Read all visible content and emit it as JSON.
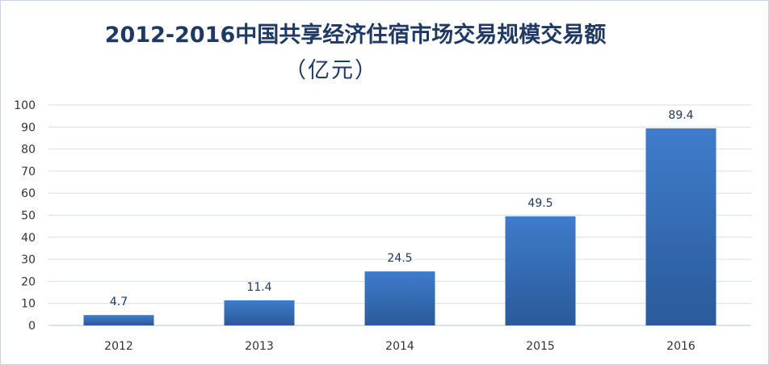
{
  "chart_data": {
    "type": "bar",
    "title": "2012-2016中国共享经济住宿市场交易规模交易额",
    "subtitle": "（亿元）",
    "categories": [
      "2012",
      "2013",
      "2014",
      "2015",
      "2016"
    ],
    "values": [
      4.7,
      11.4,
      24.5,
      49.5,
      89.4
    ],
    "data_labels": [
      "4.7",
      "11.4",
      "24.5",
      "49.5",
      "89.4"
    ],
    "yticks": [
      "0",
      "10",
      "20",
      "30",
      "40",
      "50",
      "60",
      "70",
      "80",
      "90",
      "100"
    ],
    "ylim": [
      0,
      100
    ],
    "grid": true,
    "legend": "none",
    "bar_color_top": "#3f7ccb",
    "bar_color_bottom": "#2a5a9a",
    "grid_color": "#d9dee5"
  }
}
